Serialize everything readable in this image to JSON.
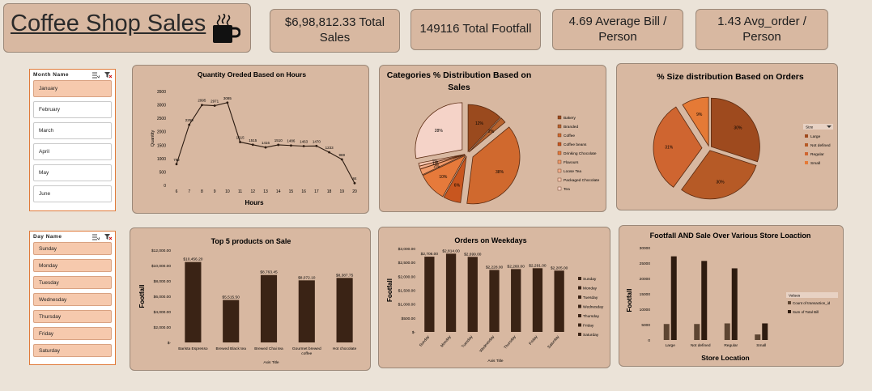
{
  "header": {
    "title": "Coffee Shop Sales",
    "icon": "coffee-cup-icon"
  },
  "kpis": [
    {
      "name": "total-sales",
      "line1": "$6,98,812.33 Total",
      "line2": "Sales"
    },
    {
      "name": "total-footfall",
      "line1": "149116 Total  Footfall",
      "line2": ""
    },
    {
      "name": "average-bill",
      "line1": "4.69 Average Bill /",
      "line2": "Person"
    },
    {
      "name": "average-order",
      "line1": "1.43 Avg_order /",
      "line2": "Person"
    }
  ],
  "month_slicer": {
    "title": "Month Name",
    "items": [
      {
        "label": "January",
        "selected": true
      },
      {
        "label": "February",
        "selected": false
      },
      {
        "label": "March",
        "selected": false
      },
      {
        "label": "April",
        "selected": false
      },
      {
        "label": "May",
        "selected": false
      },
      {
        "label": "June",
        "selected": false
      }
    ]
  },
  "day_slicer": {
    "title": "Day Name",
    "items": [
      {
        "label": "Sunday",
        "selected": true
      },
      {
        "label": "Monday",
        "selected": true
      },
      {
        "label": "Tuesday",
        "selected": true
      },
      {
        "label": "Wednesday",
        "selected": true
      },
      {
        "label": "Thursday",
        "selected": true
      },
      {
        "label": "Friday",
        "selected": true
      },
      {
        "label": "Saturday",
        "selected": true
      }
    ]
  },
  "colors": {
    "background": "#ebe3d8",
    "panel": "#d8b8a1",
    "bar": "#3a2315",
    "accent": "#e07a3a"
  },
  "chart_data": [
    {
      "id": "hours",
      "type": "line",
      "title": "Quantity Oreded Based on Hours",
      "xlabel": "Hours",
      "ylabel": "Quantity",
      "x": [
        6,
        7,
        8,
        9,
        10,
        11,
        12,
        13,
        14,
        15,
        16,
        17,
        18,
        19,
        20
      ],
      "values": [
        792,
        2259,
        2995,
        2971,
        3085,
        1615,
        1515,
        1416,
        1510,
        1486,
        1463,
        1470,
        1233,
        969,
        84
      ],
      "data_labels": [
        "792",
        "2259",
        "2995",
        "2971",
        "3085",
        "1615",
        "1515",
        "1416",
        "1510",
        "1486",
        "1463",
        "1470",
        "1233",
        "969",
        "84"
      ],
      "yticks": [
        "0",
        "500",
        "1000",
        "1500",
        "2000",
        "2500",
        "3000",
        "3500"
      ],
      "ylim": [
        0,
        3500
      ]
    },
    {
      "id": "categories",
      "type": "pie",
      "title": "Categories % Distribution Based on Sales",
      "labels": [
        "Bakery",
        "Branded",
        "Coffee",
        "Coffee beans",
        "Drinking Chocolate",
        "Flavours",
        "Loose Tea",
        "Packaged Chocolate",
        "Tea"
      ],
      "values": [
        12,
        2,
        38,
        6,
        10,
        2,
        1,
        1,
        28
      ],
      "data_labels": [
        "12%",
        "2%",
        "38%",
        "6%",
        "10%",
        "2%",
        "1%",
        "1%",
        "28%"
      ],
      "colors": [
        "#9a4a1e",
        "#b8632e",
        "#d0692e",
        "#c8561f",
        "#e67a3b",
        "#f09a6a",
        "#f4b08e",
        "#f6c6b0",
        "#f5d3c8"
      ]
    },
    {
      "id": "sizes",
      "type": "pie",
      "title": "% Size distribution Based on Orders",
      "legend_title": "Size",
      "labels": [
        "Large",
        "Not defined",
        "Regular",
        "Small"
      ],
      "values": [
        30,
        30,
        31,
        9
      ],
      "data_labels": [
        "30%",
        "30%",
        "31%",
        "9%"
      ],
      "colors": [
        "#9e4a1e",
        "#b65a26",
        "#cf6530",
        "#e57a36"
      ]
    },
    {
      "id": "products",
      "type": "bar",
      "title": "Top 5 products on Sale",
      "xlabel": "Axis Title",
      "ylabel": "Footfall",
      "categories": [
        "Barista Espresso",
        "Brewed Black tea",
        "Brewed Chai tea",
        "Gourmet brewed coffee",
        "Hot chocolate"
      ],
      "values": [
        10456.2,
        5515.5,
        8763.45,
        8072.1,
        8387.75
      ],
      "data_labels": [
        "$10,456.20",
        "$5,515.50",
        "$8,763.45",
        "$8,072.10",
        "$8,387.75"
      ],
      "yticks": [
        "$-",
        "$2,000.00",
        "$4,000.00",
        "$6,000.00",
        "$8,000.00",
        "$10,000.00",
        "$12,000.00"
      ],
      "ylim": [
        0,
        12000
      ]
    },
    {
      "id": "weekdays",
      "type": "bar",
      "title": "Orders on Weekdays",
      "xlabel": "Axis Title",
      "ylabel": "Footfall",
      "categories": [
        "Sunday",
        "Monday",
        "Tuesday",
        "Wednesday",
        "Thursday",
        "Friday",
        "Saturday"
      ],
      "values": [
        2706,
        2814,
        2699,
        2228,
        2260,
        2291,
        2205
      ],
      "data_labels": [
        "$2,706.00",
        "$2,814.00",
        "$2,699.00",
        "$2,228.00",
        "$2,260.00",
        "$2,291.00",
        "$2,205.00"
      ],
      "legend": [
        "Sunday",
        "Monday",
        "Tuesday",
        "Wednesday",
        "Thursday",
        "Friday",
        "Saturday"
      ],
      "yticks": [
        "$-",
        "$500.00",
        "$1,000.00",
        "$1,500.00",
        "$2,000.00",
        "$2,500.00",
        "$3,000.00"
      ],
      "ylim": [
        0,
        3000
      ]
    },
    {
      "id": "locations",
      "type": "bar",
      "title": "Footfall AND Sale Over Various Store Loaction",
      "xlabel": "Store Location",
      "ylabel": "Footfall",
      "categories": [
        "Large",
        "Not defined",
        "Regular",
        "Small"
      ],
      "series": [
        {
          "name": "Count of transaction_id",
          "values": [
            5200,
            5200,
            5400,
            1800
          ]
        },
        {
          "name": "Sum of Total Bill",
          "values": [
            27200,
            25700,
            23300,
            5400
          ]
        }
      ],
      "legend_title": "Values",
      "yticks": [
        "0",
        "5000",
        "10000",
        "15000",
        "20000",
        "25000",
        "30000"
      ],
      "ylim": [
        0,
        30000
      ]
    }
  ]
}
